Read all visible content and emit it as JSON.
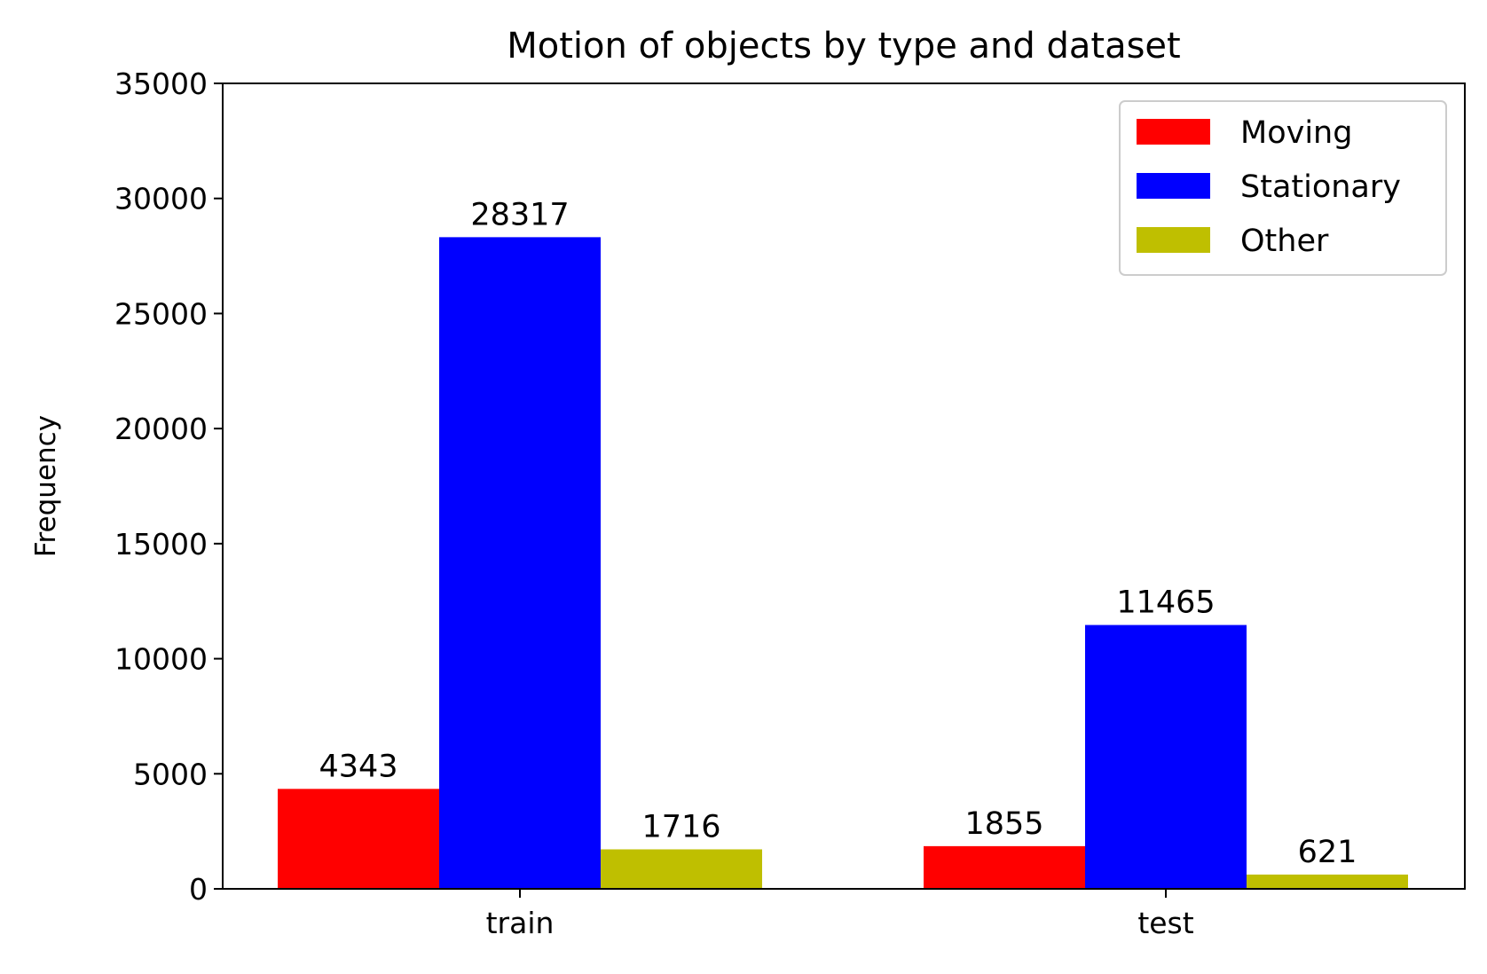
{
  "chart_data": {
    "type": "bar",
    "title": "Motion of objects by type and dataset",
    "xlabel": "",
    "ylabel": "Frequency",
    "categories": [
      "train",
      "test"
    ],
    "series": [
      {
        "name": "Moving",
        "values": [
          4343,
          1855
        ],
        "color": "#ff0000"
      },
      {
        "name": "Stationary",
        "values": [
          28317,
          11465
        ],
        "color": "#0000ff"
      },
      {
        "name": "Other",
        "values": [
          1716,
          621
        ],
        "color": "#bfbf00"
      }
    ],
    "ylim": [
      0,
      35000
    ],
    "yticks": [
      0,
      5000,
      10000,
      15000,
      20000,
      25000,
      30000,
      35000
    ],
    "grid": false,
    "legend_position": "top-right"
  }
}
